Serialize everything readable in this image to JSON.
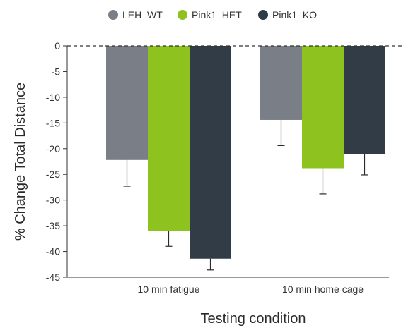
{
  "chart_data": {
    "type": "bar",
    "xlabel": "Testing condition",
    "ylabel": "% Change Total Distance",
    "ylim": [
      -45,
      0
    ],
    "yticks": [
      0,
      -5,
      -10,
      -15,
      -20,
      -25,
      -30,
      -35,
      -40,
      -45
    ],
    "categories": [
      "10 min fatigue",
      "10 min home cage"
    ],
    "series": [
      {
        "name": "LEH_WT",
        "color": "#7a7f87",
        "values": [
          -22.2,
          -14.4
        ],
        "errors": [
          5.1,
          5.0
        ]
      },
      {
        "name": "Pink1_HET",
        "color": "#8dc21f",
        "values": [
          -36.0,
          -23.8
        ],
        "errors": [
          3.0,
          5.0
        ]
      },
      {
        "name": "Pink1_KO",
        "color": "#313c47",
        "values": [
          -41.4,
          -21.0
        ],
        "errors": [
          2.2,
          4.1
        ]
      }
    ],
    "zero_line": "dashed",
    "legend_position": "top-center",
    "grid": false
  }
}
